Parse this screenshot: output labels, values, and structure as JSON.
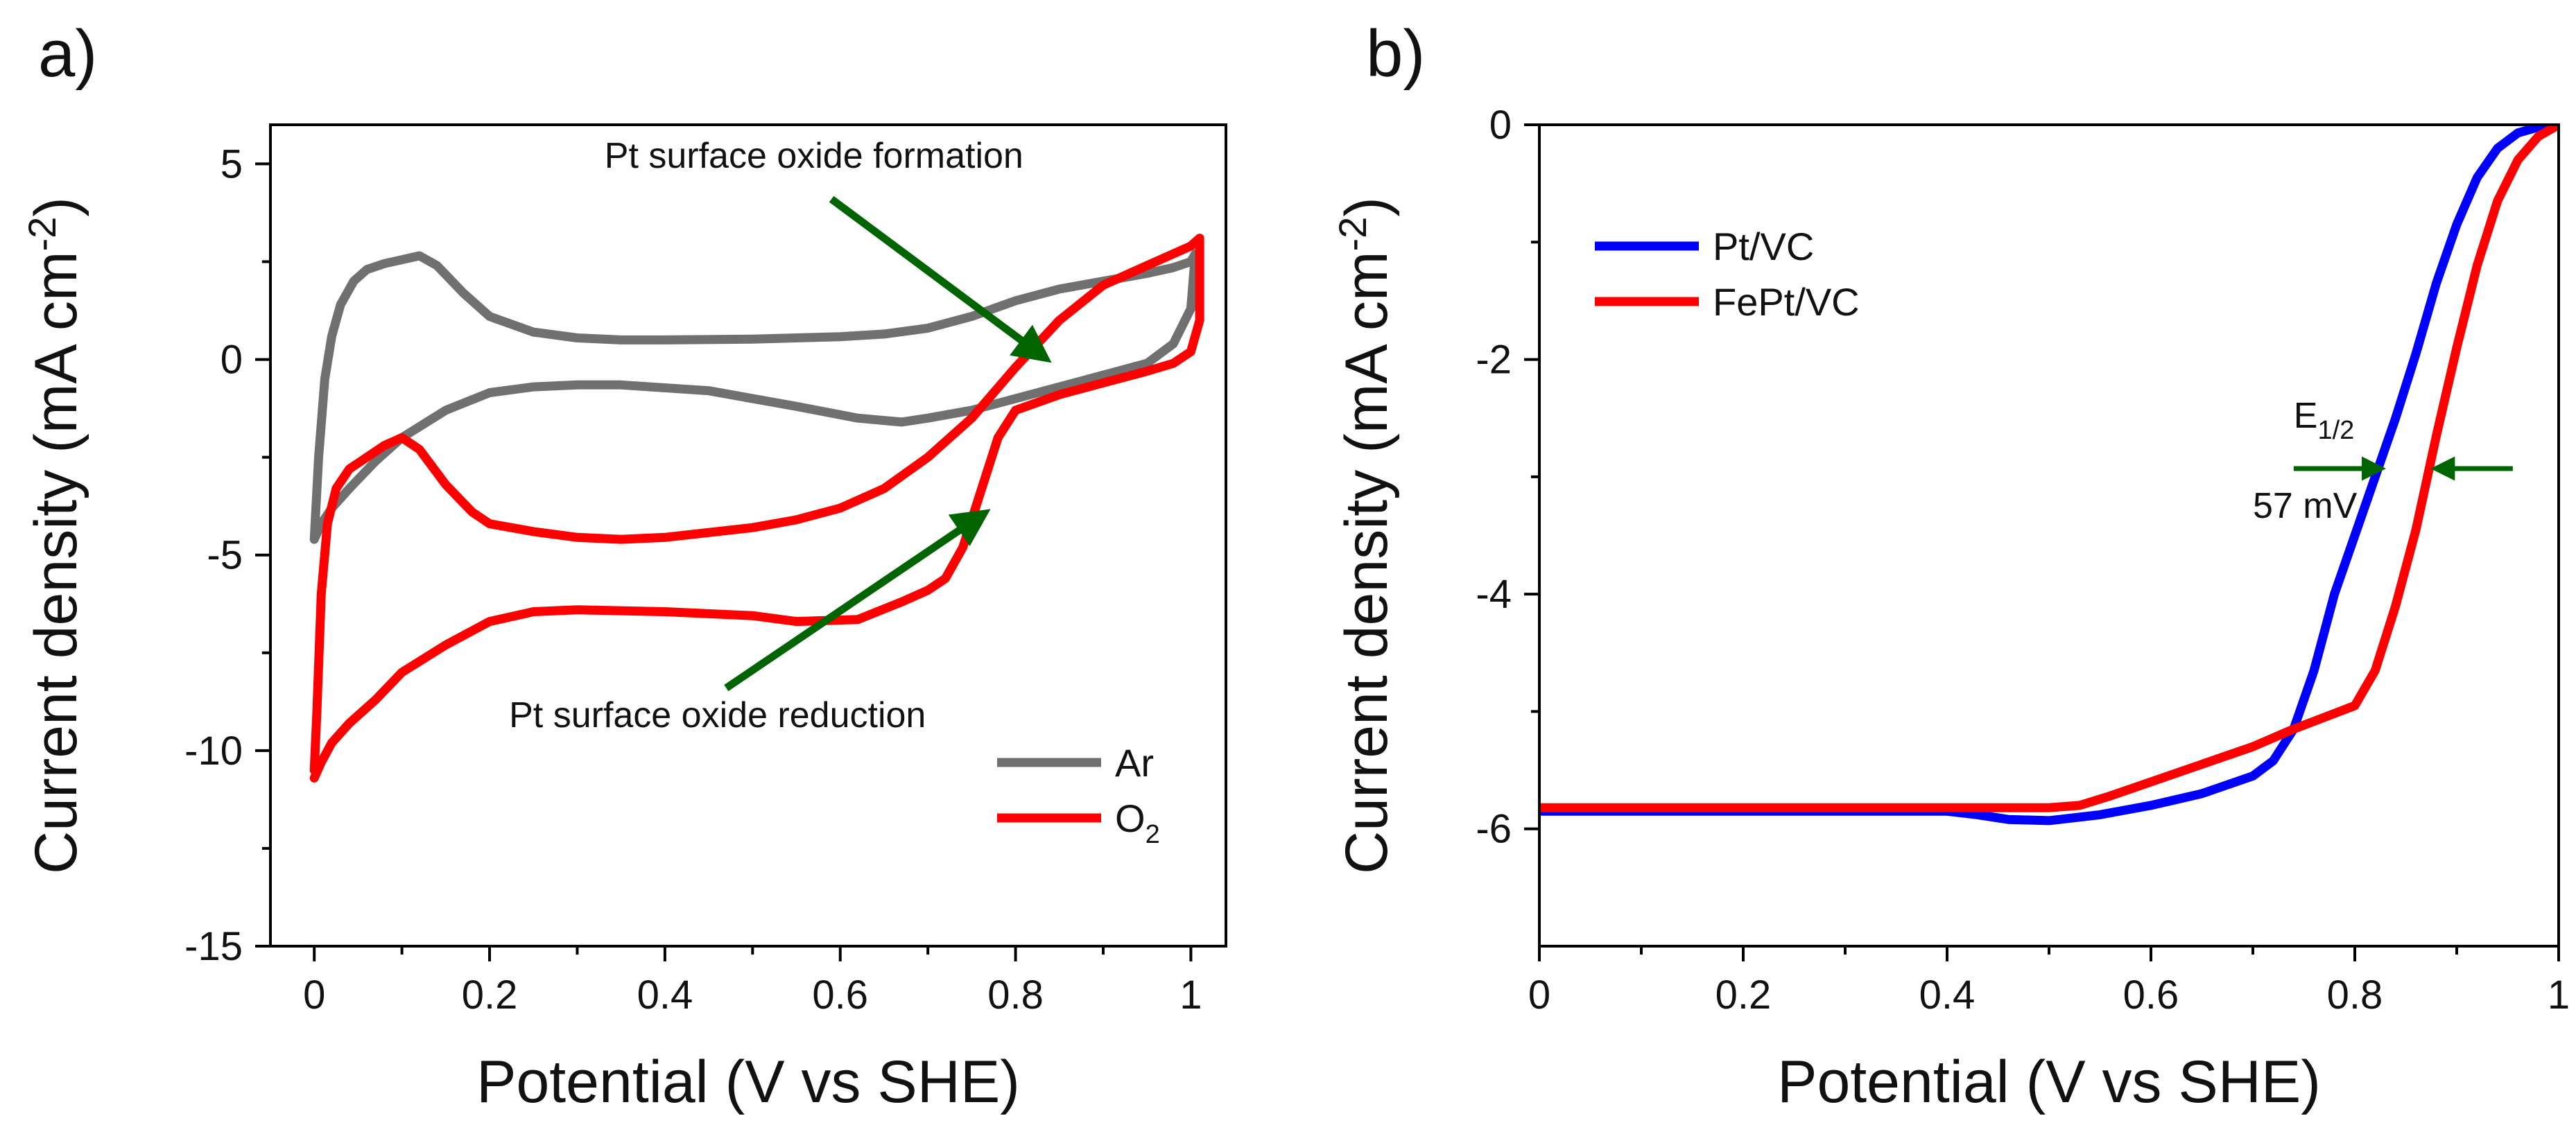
{
  "chart_data": [
    {
      "panel_label": "a)",
      "type": "line",
      "xlabel": "Potential (V vs SHE)",
      "ylabel": "Current density (mA cm",
      "ylabel_sup": "-2",
      "ylabel_close": ")",
      "xlim": [
        -0.05,
        1.04
      ],
      "ylim": [
        -15,
        6
      ],
      "xticks": [
        0,
        0.2,
        0.4,
        0.6,
        0.8,
        1
      ],
      "xtick_labels": [
        "0",
        "0.2",
        "0.4",
        "0.6",
        "0.8",
        "1"
      ],
      "yticks": [
        5,
        0,
        -5,
        -10,
        -15
      ],
      "ytick_labels": [
        "5",
        "0",
        "-5",
        "-10",
        "-15"
      ],
      "legend": {
        "position": "bottom-right",
        "entries": [
          {
            "label": "Ar",
            "series": 0
          },
          {
            "label": "O",
            "sub": "2",
            "series": 1
          }
        ]
      },
      "annotations": [
        {
          "text": "Pt surface oxide formation",
          "x": 0.57,
          "y": 4.9,
          "arrow_from": [
            0.59,
            4.1
          ],
          "arrow_to": [
            0.83,
            0.1
          ]
        },
        {
          "text": "Pt surface oxide reduction",
          "x": 0.46,
          "y": -9.4,
          "arrow_from": [
            0.47,
            -8.4
          ],
          "arrow_to": [
            0.76,
            -4.0
          ]
        }
      ],
      "series": [
        {
          "name": "Ar",
          "color": "#707070",
          "x": [
            0.0,
            0.005,
            0.012,
            0.02,
            0.03,
            0.045,
            0.06,
            0.08,
            0.1,
            0.12,
            0.14,
            0.17,
            0.2,
            0.25,
            0.3,
            0.35,
            0.4,
            0.5,
            0.6,
            0.65,
            0.7,
            0.75,
            0.8,
            0.85,
            0.9,
            0.95,
            0.98,
            1.0,
            1.005,
            1.0,
            0.98,
            0.95,
            0.9,
            0.85,
            0.8,
            0.75,
            0.7,
            0.67,
            0.62,
            0.55,
            0.45,
            0.35,
            0.3,
            0.25,
            0.2,
            0.15,
            0.1,
            0.07,
            0.04,
            0.02,
            0.008,
            0.0
          ],
          "y": [
            -4.6,
            -2.5,
            -0.5,
            0.6,
            1.4,
            2.0,
            2.3,
            2.45,
            2.55,
            2.65,
            2.4,
            1.7,
            1.1,
            0.7,
            0.55,
            0.5,
            0.5,
            0.52,
            0.58,
            0.65,
            0.8,
            1.1,
            1.5,
            1.8,
            2.0,
            2.2,
            2.35,
            2.5,
            2.7,
            1.3,
            0.4,
            -0.1,
            -0.4,
            -0.7,
            -1.0,
            -1.3,
            -1.5,
            -1.6,
            -1.5,
            -1.2,
            -0.8,
            -0.65,
            -0.65,
            -0.7,
            -0.85,
            -1.3,
            -2.0,
            -2.6,
            -3.3,
            -3.8,
            -4.2,
            -4.6
          ]
        },
        {
          "name": "O2",
          "color": "#ff0000",
          "x": [
            0.0,
            0.003,
            0.008,
            0.015,
            0.025,
            0.04,
            0.06,
            0.08,
            0.1,
            0.12,
            0.15,
            0.18,
            0.2,
            0.25,
            0.3,
            0.35,
            0.4,
            0.5,
            0.55,
            0.6,
            0.65,
            0.7,
            0.75,
            0.8,
            0.85,
            0.9,
            0.95,
            0.98,
            1.0,
            1.01,
            1.01,
            1.0,
            0.98,
            0.95,
            0.9,
            0.85,
            0.8,
            0.78,
            0.76,
            0.74,
            0.72,
            0.7,
            0.67,
            0.62,
            0.55,
            0.5,
            0.4,
            0.3,
            0.25,
            0.2,
            0.15,
            0.1,
            0.07,
            0.04,
            0.02,
            0.008,
            0.0
          ],
          "y": [
            -10.5,
            -9.0,
            -6.0,
            -4.2,
            -3.3,
            -2.8,
            -2.5,
            -2.2,
            -2.0,
            -2.3,
            -3.2,
            -3.9,
            -4.2,
            -4.4,
            -4.55,
            -4.6,
            -4.55,
            -4.3,
            -4.1,
            -3.8,
            -3.3,
            -2.5,
            -1.5,
            -0.2,
            1.0,
            1.9,
            2.4,
            2.7,
            2.9,
            3.1,
            1.0,
            0.2,
            -0.1,
            -0.3,
            -0.6,
            -0.9,
            -1.3,
            -2.0,
            -3.4,
            -4.8,
            -5.6,
            -5.9,
            -6.2,
            -6.65,
            -6.7,
            -6.55,
            -6.45,
            -6.4,
            -6.45,
            -6.7,
            -7.3,
            -8.0,
            -8.7,
            -9.3,
            -9.8,
            -10.3,
            -10.7
          ]
        }
      ]
    },
    {
      "panel_label": "b)",
      "type": "line",
      "xlabel": "Potential (V vs SHE)",
      "ylabel": "Current density (mA cm",
      "ylabel_sup": "-2",
      "ylabel_close": ")",
      "xlim": [
        0,
        1
      ],
      "ylim": [
        -7,
        0
      ],
      "xticks": [
        0,
        0.2,
        0.4,
        0.6,
        0.8,
        1
      ],
      "xtick_labels": [
        "0",
        "0.2",
        "0.4",
        "0.6",
        "0.8",
        "1"
      ],
      "yticks": [
        0,
        -2,
        -4,
        -6
      ],
      "ytick_labels": [
        "0",
        "-2",
        "-4",
        "-6"
      ],
      "legend": {
        "position": "top-left",
        "entries": [
          {
            "label": "Pt/VC",
            "series": 0
          },
          {
            "label": "FePt/VC",
            "series": 1
          }
        ]
      },
      "annotations": [
        {
          "text": "E",
          "sub": "1/2",
          "x": 0.74,
          "y": -2.58
        },
        {
          "text": "57 mV",
          "x": 0.7,
          "y": -3.35
        },
        {
          "arrow_from": [
            0.74,
            -2.93
          ],
          "arrow_to": [
            0.823,
            -2.93
          ]
        },
        {
          "arrow_from": [
            0.955,
            -2.93
          ],
          "arrow_to": [
            0.882,
            -2.93
          ]
        }
      ],
      "series": [
        {
          "name": "Pt/VC",
          "color": "#0000ff",
          "x": [
            0.0,
            0.2,
            0.4,
            0.43,
            0.46,
            0.5,
            0.55,
            0.6,
            0.65,
            0.7,
            0.72,
            0.74,
            0.76,
            0.78,
            0.8,
            0.82,
            0.84,
            0.86,
            0.88,
            0.9,
            0.92,
            0.94,
            0.96,
            0.98,
            1.0
          ],
          "y": [
            -5.85,
            -5.85,
            -5.85,
            -5.88,
            -5.92,
            -5.93,
            -5.88,
            -5.8,
            -5.7,
            -5.55,
            -5.42,
            -5.15,
            -4.65,
            -4.0,
            -3.5,
            -3.0,
            -2.5,
            -1.95,
            -1.35,
            -0.85,
            -0.45,
            -0.2,
            -0.07,
            -0.02,
            0.0
          ]
        },
        {
          "name": "FePt/VC",
          "color": "#ff0000",
          "x": [
            0.0,
            0.2,
            0.4,
            0.45,
            0.5,
            0.53,
            0.56,
            0.6,
            0.65,
            0.7,
            0.74,
            0.77,
            0.8,
            0.82,
            0.84,
            0.86,
            0.88,
            0.9,
            0.92,
            0.94,
            0.96,
            0.98,
            1.0
          ],
          "y": [
            -5.82,
            -5.82,
            -5.82,
            -5.82,
            -5.82,
            -5.8,
            -5.72,
            -5.6,
            -5.45,
            -5.3,
            -5.15,
            -5.05,
            -4.95,
            -4.65,
            -4.1,
            -3.45,
            -2.65,
            -1.9,
            -1.2,
            -0.65,
            -0.3,
            -0.1,
            0.0
          ]
        }
      ]
    }
  ]
}
